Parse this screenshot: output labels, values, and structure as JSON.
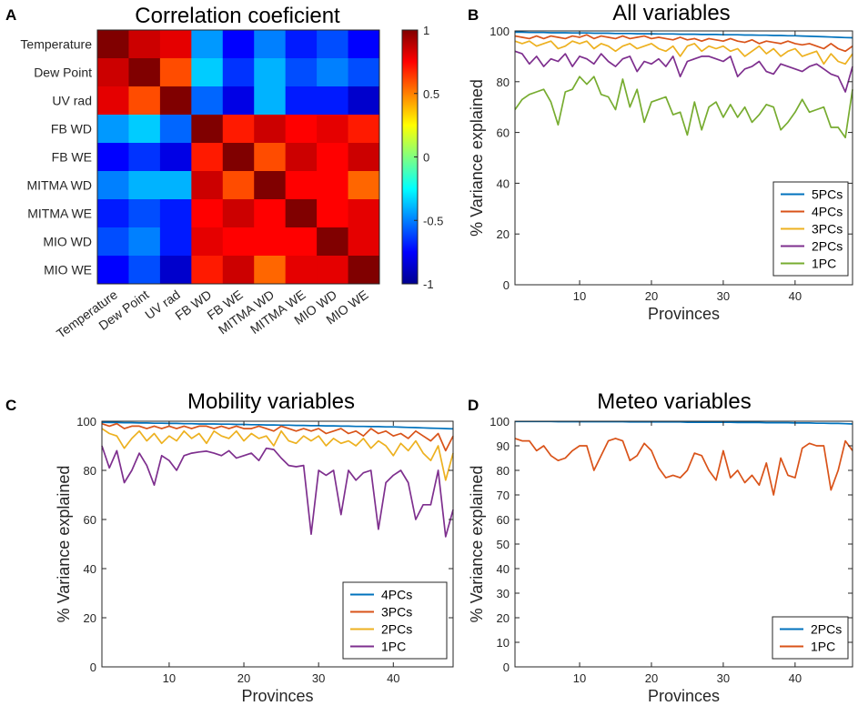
{
  "chart_data": [
    {
      "panel": "A",
      "type": "heatmap",
      "title": "Correlation coeficient",
      "rows": [
        "Temperature",
        "Dew Point",
        "UV rad",
        "FB WD",
        "FB WE",
        "MITMA WD",
        "MITMA WE",
        "MIO WD",
        "MIO WE"
      ],
      "cols": [
        "Temperature",
        "Dew Point",
        "UV rad",
        "FB WD",
        "FB WE",
        "MITMA WD",
        "MITMA WE",
        "MIO WD",
        "MIO WE"
      ],
      "values": [
        [
          1.0,
          0.85,
          0.8,
          -0.45,
          -0.75,
          -0.5,
          -0.7,
          -0.6,
          -0.75
        ],
        [
          0.85,
          1.0,
          0.6,
          -0.35,
          -0.65,
          -0.4,
          -0.6,
          -0.5,
          -0.6
        ],
        [
          0.8,
          0.6,
          1.0,
          -0.55,
          -0.8,
          -0.4,
          -0.7,
          -0.7,
          -0.85
        ],
        [
          -0.45,
          -0.35,
          -0.55,
          1.0,
          0.7,
          0.85,
          0.75,
          0.8,
          0.7
        ],
        [
          -0.75,
          -0.65,
          -0.8,
          0.7,
          1.0,
          0.6,
          0.85,
          0.75,
          0.85
        ],
        [
          -0.5,
          -0.4,
          -0.4,
          0.85,
          0.6,
          1.0,
          0.75,
          0.75,
          0.55
        ],
        [
          -0.7,
          -0.6,
          -0.7,
          0.75,
          0.85,
          0.75,
          1.0,
          0.75,
          0.8
        ],
        [
          -0.6,
          -0.5,
          -0.7,
          0.8,
          0.75,
          0.75,
          0.75,
          1.0,
          0.8
        ],
        [
          -0.75,
          -0.6,
          -0.85,
          0.7,
          0.85,
          0.55,
          0.8,
          0.8,
          1.0
        ]
      ],
      "colorbar": {
        "min": -1,
        "max": 1,
        "ticks": [
          "1",
          "0.5",
          "0",
          "-0.5",
          "-1"
        ]
      }
    },
    {
      "panel": "B",
      "type": "line",
      "title": "All variables",
      "xlabel": "Provinces",
      "ylabel": "% Variance explained",
      "xlim": [
        1,
        48
      ],
      "ylim": [
        0,
        100
      ],
      "xticks": [
        "10",
        "20",
        "30",
        "40"
      ],
      "yticks": [
        "0",
        "20",
        "40",
        "60",
        "80",
        "100"
      ],
      "legend_position": "bottom-right",
      "series": [
        {
          "name": "5PCs",
          "color": "#0072BD",
          "values": [
            99.5,
            99.5,
            99.4,
            99.4,
            99.4,
            99.3,
            99.3,
            99.3,
            99.2,
            99.2,
            99.2,
            99.1,
            99.1,
            99.1,
            99.0,
            99.0,
            99.0,
            98.9,
            98.9,
            98.9,
            98.8,
            98.8,
            98.8,
            98.7,
            98.7,
            98.7,
            98.6,
            98.6,
            98.6,
            98.5,
            98.5,
            98.5,
            98.4,
            98.4,
            98.3,
            98.3,
            98.2,
            98.2,
            98.1,
            98.1,
            98.0,
            97.9,
            97.8,
            97.7,
            97.6,
            97.5,
            97.4,
            97.3
          ]
        },
        {
          "name": "4PCs",
          "color": "#D95319",
          "values": [
            98,
            97.5,
            97,
            98,
            97,
            98,
            97.5,
            97,
            98,
            97.5,
            98.5,
            97,
            98,
            97.5,
            97,
            98,
            97,
            97.5,
            98,
            97,
            97.5,
            97,
            96.5,
            97.5,
            96.5,
            97,
            96,
            97,
            96.5,
            96,
            97,
            96,
            95.5,
            96.5,
            95,
            96,
            95.5,
            95,
            96,
            95,
            94.5,
            95,
            94,
            93,
            95,
            93,
            92,
            94
          ]
        },
        {
          "name": "3PCs",
          "color": "#EDB120",
          "values": [
            96,
            95,
            96,
            94,
            95,
            96,
            93,
            94,
            96,
            95,
            96,
            93,
            95,
            94,
            92,
            94,
            95,
            93,
            94,
            95,
            93,
            92,
            94,
            90,
            94,
            95,
            92,
            94,
            93,
            94,
            92,
            93,
            90,
            92,
            94,
            91,
            93,
            90,
            92,
            93,
            90,
            91,
            92,
            87,
            91,
            88,
            87,
            91
          ]
        },
        {
          "name": "2PCs",
          "color": "#7E2F8E",
          "values": [
            92,
            91,
            87,
            90,
            86,
            89,
            88,
            91,
            86,
            90,
            89,
            87,
            91,
            88,
            86,
            89,
            90,
            84,
            88,
            87,
            89,
            86,
            90,
            82,
            88,
            89,
            90,
            90,
            89,
            88,
            90,
            82,
            85,
            86,
            88,
            84,
            83,
            87,
            86,
            85,
            84,
            86,
            87,
            85,
            83,
            82,
            76,
            86
          ]
        },
        {
          "name": "1PC",
          "color": "#77AC30",
          "values": [
            69,
            73,
            75,
            76,
            77,
            72,
            63,
            76,
            77,
            82,
            79,
            82,
            75,
            74,
            69,
            81,
            70,
            77,
            64,
            72,
            73,
            74,
            67,
            68,
            59,
            72,
            61,
            70,
            72,
            66,
            71,
            66,
            70,
            64,
            67,
            71,
            70,
            61,
            64,
            68,
            73,
            68,
            69,
            70,
            62,
            62,
            58,
            77
          ]
        }
      ]
    },
    {
      "panel": "C",
      "type": "line",
      "title": "Mobility variables",
      "xlabel": "Provinces",
      "ylabel": "% Variance explained",
      "xlim": [
        1,
        48
      ],
      "ylim": [
        0,
        100
      ],
      "xticks": [
        "10",
        "20",
        "30",
        "40"
      ],
      "yticks": [
        "0",
        "20",
        "40",
        "60",
        "80",
        "100"
      ],
      "legend_position": "bottom-right",
      "series": [
        {
          "name": "4PCs",
          "color": "#0072BD",
          "values": [
            99.6,
            99.5,
            99.5,
            99.4,
            99.4,
            99.3,
            99.3,
            99.2,
            99.2,
            99.1,
            99.1,
            99.0,
            99.0,
            98.9,
            98.9,
            98.9,
            98.8,
            98.8,
            98.7,
            98.7,
            98.6,
            98.6,
            98.5,
            98.5,
            98.4,
            98.4,
            98.3,
            98.3,
            98.2,
            98.2,
            98.1,
            98.1,
            98.0,
            98.0,
            97.9,
            97.9,
            97.8,
            97.8,
            97.7,
            97.7,
            97.6,
            97.5,
            97.4,
            97.3,
            97.2,
            97.1,
            97.0,
            96.9
          ]
        },
        {
          "name": "3PCs",
          "color": "#D95319",
          "values": [
            99,
            98,
            99,
            97,
            98,
            98,
            97,
            98,
            97,
            98,
            97,
            98,
            97,
            98,
            98,
            97,
            98,
            97,
            98,
            97,
            97,
            98,
            97,
            96,
            98,
            97,
            96,
            97,
            96,
            97,
            95,
            96,
            97,
            95,
            96,
            94,
            97,
            95,
            96,
            94,
            95,
            93,
            96,
            94,
            92,
            95,
            88,
            94
          ]
        },
        {
          "name": "2PCs",
          "color": "#EDB120",
          "values": [
            97,
            95,
            94,
            89,
            93,
            96,
            92,
            95,
            91,
            94,
            92,
            96,
            93,
            95,
            91,
            96,
            94,
            93,
            96,
            92,
            95,
            93,
            94,
            90,
            96,
            92,
            91,
            94,
            92,
            94,
            90,
            93,
            91,
            92,
            90,
            93,
            89,
            92,
            90,
            86,
            91,
            88,
            92,
            87,
            84,
            90,
            76,
            87
          ]
        },
        {
          "name": "1PC",
          "color": "#7E2F8E",
          "values": [
            90,
            81,
            88,
            75,
            80,
            87,
            82,
            74,
            86,
            84,
            80,
            86,
            87,
            87.5,
            87.8,
            87,
            86,
            88,
            85,
            86,
            87,
            84,
            89,
            88.5,
            85,
            82,
            81.5,
            82,
            54,
            80,
            78,
            80,
            62,
            80,
            76,
            79,
            80,
            56,
            75,
            78,
            80,
            75,
            60,
            66,
            66,
            80,
            53,
            64
          ]
        }
      ]
    },
    {
      "panel": "D",
      "type": "line",
      "title": "Meteo variables",
      "xlabel": "Provinces",
      "ylabel": "% Variance explained",
      "xlim": [
        1,
        48
      ],
      "ylim": [
        0,
        100
      ],
      "xticks": [
        "10",
        "20",
        "30",
        "40"
      ],
      "yticks": [
        "0",
        "10",
        "20",
        "30",
        "40",
        "50",
        "60",
        "70",
        "80",
        "90",
        "100"
      ],
      "legend_position": "bottom-right",
      "series": [
        {
          "name": "2PCs",
          "color": "#0072BD",
          "values": [
            99.9,
            99.9,
            99.9,
            99.9,
            99.9,
            99.9,
            99.8,
            99.8,
            99.8,
            99.8,
            99.8,
            99.8,
            99.8,
            99.8,
            99.8,
            99.8,
            99.7,
            99.7,
            99.7,
            99.7,
            99.7,
            99.7,
            99.7,
            99.7,
            99.6,
            99.6,
            99.6,
            99.6,
            99.6,
            99.6,
            99.6,
            99.5,
            99.5,
            99.5,
            99.5,
            99.4,
            99.4,
            99.4,
            99.4,
            99.3,
            99.3,
            99.3,
            99.2,
            99.2,
            99.1,
            99.1,
            99.0,
            98.9
          ]
        },
        {
          "name": "1PC",
          "color": "#D95319",
          "values": [
            93,
            92,
            92,
            88,
            90,
            86,
            84,
            85,
            88,
            90,
            90,
            80,
            86,
            92,
            93,
            92,
            84,
            86,
            91,
            88,
            81,
            77,
            78,
            77,
            80,
            87,
            86,
            80,
            76,
            88,
            77,
            80,
            75,
            78,
            74,
            83,
            70,
            85,
            78,
            77,
            89,
            91,
            90,
            90,
            72,
            80,
            92,
            88
          ]
        }
      ]
    }
  ]
}
